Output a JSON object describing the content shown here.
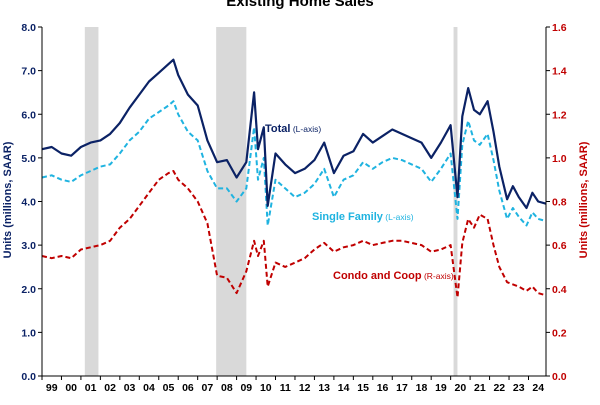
{
  "chart_data": {
    "type": "line",
    "title": "Existing Home Sales",
    "ylabel_left": "Units (millions, SAAR)",
    "ylabel_right": "Units (millions, SAAR)",
    "ylim_left": [
      0,
      8
    ],
    "ylim_right": [
      0,
      1.6
    ],
    "yticks_left": [
      "0.0",
      "1.0",
      "2.0",
      "3.0",
      "4.0",
      "5.0",
      "6.0",
      "7.0",
      "8.0"
    ],
    "yticks_right": [
      "0.0",
      "0.2",
      "0.4",
      "0.6",
      "0.8",
      "1.0",
      "1.2",
      "1.4",
      "1.6"
    ],
    "xlim": [
      1999.0,
      2024.9
    ],
    "x_ticks": [
      "99",
      "00",
      "01",
      "02",
      "03",
      "04",
      "05",
      "06",
      "07",
      "08",
      "09",
      "10",
      "11",
      "12",
      "13",
      "14",
      "15",
      "16",
      "17",
      "18",
      "19",
      "20",
      "21",
      "22",
      "23",
      "24"
    ],
    "recessions": [
      [
        2001.2,
        2001.9
      ],
      [
        2007.95,
        2009.5
      ],
      [
        2020.15,
        2020.35
      ]
    ],
    "colors": {
      "total": "#0b2265",
      "single_family": "#1fb3e0",
      "condo": "#c00000",
      "recession": "#d9d9d9",
      "left_axis": "#0b2265",
      "right_axis": "#c00000"
    },
    "series": [
      {
        "name": "Total",
        "axis": "left",
        "style": "solid",
        "points": [
          [
            1999.0,
            5.2
          ],
          [
            1999.5,
            5.25
          ],
          [
            2000.0,
            5.1
          ],
          [
            2000.5,
            5.05
          ],
          [
            2001.0,
            5.25
          ],
          [
            2001.5,
            5.35
          ],
          [
            2002.0,
            5.4
          ],
          [
            2002.5,
            5.55
          ],
          [
            2003.0,
            5.8
          ],
          [
            2003.5,
            6.15
          ],
          [
            2004.0,
            6.45
          ],
          [
            2004.5,
            6.75
          ],
          [
            2005.0,
            6.95
          ],
          [
            2005.5,
            7.15
          ],
          [
            2005.75,
            7.25
          ],
          [
            2006.0,
            6.9
          ],
          [
            2006.5,
            6.45
          ],
          [
            2007.0,
            6.2
          ],
          [
            2007.5,
            5.4
          ],
          [
            2008.0,
            4.9
          ],
          [
            2008.5,
            4.95
          ],
          [
            2009.0,
            4.55
          ],
          [
            2009.5,
            4.9
          ],
          [
            2009.9,
            6.5
          ],
          [
            2010.1,
            5.2
          ],
          [
            2010.4,
            5.7
          ],
          [
            2010.6,
            3.9
          ],
          [
            2011.0,
            5.1
          ],
          [
            2011.5,
            4.85
          ],
          [
            2012.0,
            4.65
          ],
          [
            2012.5,
            4.75
          ],
          [
            2013.0,
            4.95
          ],
          [
            2013.5,
            5.35
          ],
          [
            2014.0,
            4.65
          ],
          [
            2014.5,
            5.05
          ],
          [
            2015.0,
            5.15
          ],
          [
            2015.5,
            5.55
          ],
          [
            2016.0,
            5.35
          ],
          [
            2016.5,
            5.5
          ],
          [
            2017.0,
            5.65
          ],
          [
            2017.5,
            5.55
          ],
          [
            2018.0,
            5.45
          ],
          [
            2018.5,
            5.35
          ],
          [
            2019.0,
            5.0
          ],
          [
            2019.5,
            5.35
          ],
          [
            2020.0,
            5.75
          ],
          [
            2020.35,
            4.1
          ],
          [
            2020.6,
            5.95
          ],
          [
            2020.9,
            6.6
          ],
          [
            2021.2,
            6.1
          ],
          [
            2021.5,
            6.0
          ],
          [
            2021.9,
            6.3
          ],
          [
            2022.2,
            5.6
          ],
          [
            2022.5,
            4.8
          ],
          [
            2022.9,
            4.05
          ],
          [
            2023.2,
            4.35
          ],
          [
            2023.5,
            4.1
          ],
          [
            2023.9,
            3.85
          ],
          [
            2024.2,
            4.2
          ],
          [
            2024.5,
            4.0
          ],
          [
            2024.9,
            3.95
          ]
        ]
      },
      {
        "name": "Single Family",
        "axis": "left",
        "style": "dashed",
        "points": [
          [
            1999.0,
            4.55
          ],
          [
            1999.5,
            4.6
          ],
          [
            2000.0,
            4.5
          ],
          [
            2000.5,
            4.45
          ],
          [
            2001.0,
            4.6
          ],
          [
            2001.5,
            4.7
          ],
          [
            2002.0,
            4.8
          ],
          [
            2002.5,
            4.85
          ],
          [
            2003.0,
            5.1
          ],
          [
            2003.5,
            5.4
          ],
          [
            2004.0,
            5.6
          ],
          [
            2004.5,
            5.9
          ],
          [
            2005.0,
            6.05
          ],
          [
            2005.5,
            6.2
          ],
          [
            2005.75,
            6.3
          ],
          [
            2006.0,
            6.0
          ],
          [
            2006.5,
            5.6
          ],
          [
            2007.0,
            5.4
          ],
          [
            2007.5,
            4.7
          ],
          [
            2008.0,
            4.3
          ],
          [
            2008.5,
            4.3
          ],
          [
            2009.0,
            4.0
          ],
          [
            2009.5,
            4.3
          ],
          [
            2009.9,
            5.7
          ],
          [
            2010.1,
            4.5
          ],
          [
            2010.4,
            5.0
          ],
          [
            2010.6,
            3.45
          ],
          [
            2011.0,
            4.5
          ],
          [
            2011.5,
            4.3
          ],
          [
            2012.0,
            4.1
          ],
          [
            2012.5,
            4.2
          ],
          [
            2013.0,
            4.4
          ],
          [
            2013.5,
            4.75
          ],
          [
            2014.0,
            4.1
          ],
          [
            2014.5,
            4.5
          ],
          [
            2015.0,
            4.6
          ],
          [
            2015.5,
            4.9
          ],
          [
            2016.0,
            4.75
          ],
          [
            2016.5,
            4.9
          ],
          [
            2017.0,
            5.0
          ],
          [
            2017.5,
            4.95
          ],
          [
            2018.0,
            4.85
          ],
          [
            2018.5,
            4.75
          ],
          [
            2019.0,
            4.45
          ],
          [
            2019.5,
            4.75
          ],
          [
            2020.0,
            5.1
          ],
          [
            2020.35,
            3.6
          ],
          [
            2020.6,
            5.3
          ],
          [
            2020.9,
            5.85
          ],
          [
            2021.2,
            5.4
          ],
          [
            2021.5,
            5.3
          ],
          [
            2021.9,
            5.55
          ],
          [
            2022.2,
            4.95
          ],
          [
            2022.5,
            4.25
          ],
          [
            2022.9,
            3.6
          ],
          [
            2023.2,
            3.85
          ],
          [
            2023.5,
            3.65
          ],
          [
            2023.9,
            3.45
          ],
          [
            2024.2,
            3.75
          ],
          [
            2024.5,
            3.6
          ],
          [
            2024.9,
            3.55
          ]
        ]
      },
      {
        "name": "Condo and Coop",
        "axis": "right",
        "style": "dashed",
        "points": [
          [
            1999.0,
            0.55
          ],
          [
            1999.5,
            0.54
          ],
          [
            2000.0,
            0.55
          ],
          [
            2000.5,
            0.54
          ],
          [
            2001.0,
            0.58
          ],
          [
            2001.5,
            0.59
          ],
          [
            2002.0,
            0.6
          ],
          [
            2002.5,
            0.62
          ],
          [
            2003.0,
            0.68
          ],
          [
            2003.5,
            0.72
          ],
          [
            2004.0,
            0.78
          ],
          [
            2004.5,
            0.84
          ],
          [
            2005.0,
            0.9
          ],
          [
            2005.5,
            0.93
          ],
          [
            2005.75,
            0.94
          ],
          [
            2006.0,
            0.9
          ],
          [
            2006.5,
            0.86
          ],
          [
            2007.0,
            0.8
          ],
          [
            2007.5,
            0.7
          ],
          [
            2008.0,
            0.46
          ],
          [
            2008.5,
            0.45
          ],
          [
            2009.0,
            0.38
          ],
          [
            2009.5,
            0.48
          ],
          [
            2009.9,
            0.62
          ],
          [
            2010.1,
            0.55
          ],
          [
            2010.4,
            0.62
          ],
          [
            2010.6,
            0.41
          ],
          [
            2011.0,
            0.52
          ],
          [
            2011.5,
            0.5
          ],
          [
            2012.0,
            0.52
          ],
          [
            2012.5,
            0.54
          ],
          [
            2013.0,
            0.58
          ],
          [
            2013.5,
            0.61
          ],
          [
            2014.0,
            0.57
          ],
          [
            2014.5,
            0.59
          ],
          [
            2015.0,
            0.6
          ],
          [
            2015.5,
            0.62
          ],
          [
            2016.0,
            0.6
          ],
          [
            2016.5,
            0.61
          ],
          [
            2017.0,
            0.62
          ],
          [
            2017.5,
            0.62
          ],
          [
            2018.0,
            0.61
          ],
          [
            2018.5,
            0.6
          ],
          [
            2019.0,
            0.57
          ],
          [
            2019.5,
            0.58
          ],
          [
            2020.0,
            0.6
          ],
          [
            2020.35,
            0.36
          ],
          [
            2020.6,
            0.61
          ],
          [
            2020.9,
            0.72
          ],
          [
            2021.2,
            0.68
          ],
          [
            2021.5,
            0.74
          ],
          [
            2021.9,
            0.72
          ],
          [
            2022.2,
            0.6
          ],
          [
            2022.5,
            0.5
          ],
          [
            2022.9,
            0.43
          ],
          [
            2023.2,
            0.42
          ],
          [
            2023.5,
            0.41
          ],
          [
            2023.9,
            0.39
          ],
          [
            2024.2,
            0.41
          ],
          [
            2024.5,
            0.38
          ],
          [
            2024.9,
            0.37
          ]
        ]
      }
    ],
    "annotations": [
      {
        "text": "Total",
        "suffix": " (L-axis)",
        "series": "total"
      },
      {
        "text": "Single Family",
        "suffix": " (L-axis)",
        "series": "single_family"
      },
      {
        "text": "Condo and Coop",
        "suffix": " (R-axis)",
        "series": "condo"
      }
    ]
  }
}
